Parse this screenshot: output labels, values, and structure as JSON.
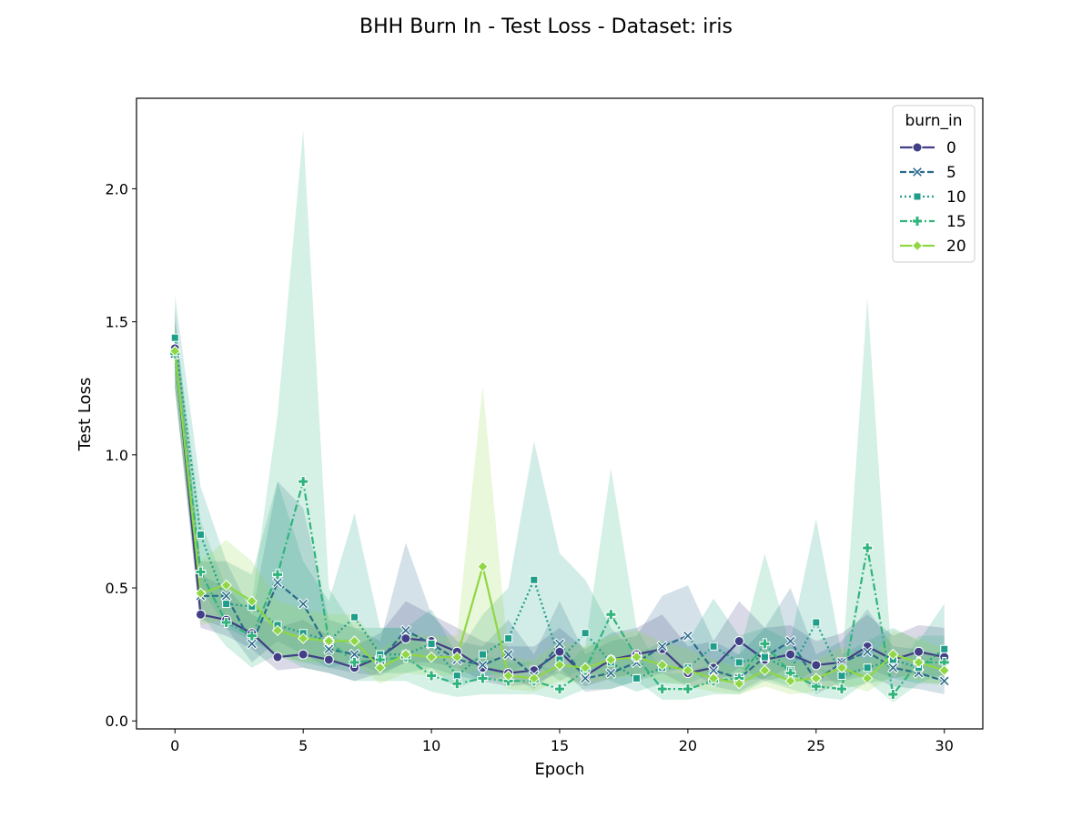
{
  "chart_data": {
    "type": "line",
    "title": "BHH Burn In - Test Loss - Dataset: iris",
    "xlabel": "Epoch",
    "ylabel": "Test Loss",
    "xlim": [
      -1.5,
      31.5
    ],
    "ylim": [
      -0.03,
      2.34
    ],
    "xticks": [
      0,
      5,
      10,
      15,
      20,
      25,
      30
    ],
    "xtick_labels": [
      "0",
      "5",
      "10",
      "15",
      "20",
      "25",
      "30"
    ],
    "yticks": [
      0.0,
      0.5,
      1.0,
      1.5,
      2.0
    ],
    "ytick_labels": [
      "0.0",
      "0.5",
      "1.0",
      "1.5",
      "2.0"
    ],
    "grid": false,
    "legend": {
      "title": "burn_in",
      "location": "top-right"
    },
    "x": [
      0,
      1,
      2,
      3,
      4,
      5,
      6,
      7,
      8,
      9,
      10,
      11,
      12,
      13,
      14,
      15,
      16,
      17,
      18,
      19,
      20,
      21,
      22,
      23,
      24,
      25,
      26,
      27,
      28,
      29,
      30
    ],
    "series": [
      {
        "name": "0",
        "color": "#413f85",
        "marker": "circle",
        "dash": "solid",
        "values": [
          1.4,
          0.4,
          0.38,
          0.33,
          0.24,
          0.25,
          0.23,
          0.2,
          0.24,
          0.31,
          0.3,
          0.26,
          0.2,
          0.18,
          0.19,
          0.26,
          0.17,
          0.23,
          0.25,
          0.27,
          0.18,
          0.2,
          0.3,
          0.23,
          0.25,
          0.21,
          0.22,
          0.28,
          0.23,
          0.26,
          0.24
        ],
        "ci_low": [
          1.25,
          0.35,
          0.32,
          0.27,
          0.19,
          0.2,
          0.18,
          0.15,
          0.18,
          0.22,
          0.22,
          0.2,
          0.15,
          0.13,
          0.14,
          0.18,
          0.13,
          0.16,
          0.18,
          0.18,
          0.13,
          0.14,
          0.2,
          0.15,
          0.17,
          0.15,
          0.15,
          0.2,
          0.16,
          0.18,
          0.16
        ],
        "ci_high": [
          1.55,
          0.55,
          0.5,
          0.4,
          0.35,
          0.38,
          0.32,
          0.28,
          0.33,
          0.45,
          0.4,
          0.35,
          0.3,
          0.28,
          0.28,
          0.35,
          0.27,
          0.33,
          0.35,
          0.4,
          0.28,
          0.3,
          0.45,
          0.35,
          0.36,
          0.3,
          0.33,
          0.4,
          0.32,
          0.36,
          0.35
        ]
      },
      {
        "name": "5",
        "color": "#2b6b8c",
        "marker": "x",
        "dash": "dashed",
        "values": [
          1.38,
          0.47,
          0.47,
          0.29,
          0.52,
          0.44,
          0.27,
          0.25,
          0.23,
          0.34,
          0.29,
          0.23,
          0.21,
          0.25,
          0.17,
          0.29,
          0.16,
          0.18,
          0.22,
          0.28,
          0.32,
          0.19,
          0.16,
          0.24,
          0.3,
          0.15,
          0.22,
          0.26,
          0.2,
          0.18,
          0.15
        ],
        "ci_low": [
          1.25,
          0.38,
          0.35,
          0.22,
          0.3,
          0.25,
          0.2,
          0.18,
          0.17,
          0.22,
          0.2,
          0.17,
          0.15,
          0.17,
          0.12,
          0.2,
          0.11,
          0.12,
          0.15,
          0.18,
          0.2,
          0.13,
          0.11,
          0.16,
          0.2,
          0.1,
          0.15,
          0.17,
          0.13,
          0.12,
          0.1
        ],
        "ci_high": [
          1.5,
          0.6,
          0.6,
          0.4,
          0.9,
          0.8,
          0.38,
          0.35,
          0.3,
          0.67,
          0.4,
          0.3,
          0.28,
          0.38,
          0.25,
          0.45,
          0.25,
          0.3,
          0.32,
          0.47,
          0.51,
          0.3,
          0.25,
          0.35,
          0.5,
          0.25,
          0.3,
          0.42,
          0.28,
          0.27,
          0.23
        ]
      },
      {
        "name": "10",
        "color": "#1f9e89",
        "marker": "square",
        "dash": "dotted",
        "values": [
          1.44,
          0.7,
          0.44,
          0.43,
          0.36,
          0.33,
          0.3,
          0.39,
          0.25,
          0.25,
          0.29,
          0.17,
          0.25,
          0.31,
          0.53,
          0.23,
          0.33,
          0.22,
          0.16,
          0.2,
          0.2,
          0.28,
          0.22,
          0.24,
          0.19,
          0.37,
          0.17,
          0.2,
          0.23,
          0.2,
          0.27
        ],
        "ci_low": [
          1.3,
          0.5,
          0.35,
          0.3,
          0.25,
          0.22,
          0.2,
          0.22,
          0.18,
          0.18,
          0.2,
          0.12,
          0.17,
          0.18,
          0.22,
          0.15,
          0.2,
          0.15,
          0.11,
          0.14,
          0.14,
          0.18,
          0.15,
          0.16,
          0.13,
          0.2,
          0.12,
          0.14,
          0.16,
          0.14,
          0.18
        ],
        "ci_high": [
          1.6,
          0.88,
          0.6,
          0.55,
          0.9,
          0.6,
          0.45,
          0.78,
          0.35,
          0.35,
          0.42,
          0.25,
          0.4,
          0.5,
          1.05,
          0.63,
          0.53,
          0.35,
          0.25,
          0.3,
          0.3,
          0.46,
          0.32,
          0.35,
          0.3,
          0.76,
          0.25,
          0.3,
          0.35,
          0.3,
          0.44
        ]
      },
      {
        "name": "15",
        "color": "#2fb47c",
        "marker": "plus",
        "dash": "dashdot",
        "values": [
          1.38,
          0.56,
          0.37,
          0.32,
          0.55,
          0.9,
          0.3,
          0.22,
          0.23,
          0.24,
          0.17,
          0.14,
          0.16,
          0.15,
          0.15,
          0.12,
          0.19,
          0.4,
          0.24,
          0.12,
          0.12,
          0.15,
          0.16,
          0.29,
          0.18,
          0.13,
          0.12,
          0.65,
          0.1,
          0.22,
          0.22
        ],
        "ci_low": [
          1.25,
          0.4,
          0.28,
          0.2,
          0.25,
          0.2,
          0.18,
          0.15,
          0.15,
          0.15,
          0.11,
          0.09,
          0.1,
          0.1,
          0.1,
          0.08,
          0.12,
          0.12,
          0.15,
          0.08,
          0.08,
          0.1,
          0.1,
          0.15,
          0.12,
          0.09,
          0.08,
          0.15,
          0.07,
          0.14,
          0.14
        ],
        "ci_high": [
          1.5,
          0.75,
          0.5,
          0.45,
          1.15,
          2.22,
          0.5,
          0.35,
          0.35,
          0.35,
          0.25,
          0.2,
          0.25,
          0.22,
          0.22,
          0.18,
          0.28,
          0.95,
          0.35,
          0.18,
          0.18,
          0.22,
          0.25,
          0.63,
          0.28,
          0.2,
          0.18,
          1.59,
          0.15,
          0.32,
          0.32
        ]
      },
      {
        "name": "20",
        "color": "#8fd744",
        "marker": "diamond",
        "dash": "solid",
        "values": [
          1.39,
          0.48,
          0.51,
          0.45,
          0.34,
          0.31,
          0.3,
          0.3,
          0.2,
          0.25,
          0.24,
          0.24,
          0.58,
          0.17,
          0.16,
          0.21,
          0.2,
          0.23,
          0.24,
          0.21,
          0.19,
          0.16,
          0.14,
          0.19,
          0.15,
          0.16,
          0.2,
          0.16,
          0.25,
          0.22,
          0.19
        ],
        "ci_low": [
          1.28,
          0.36,
          0.38,
          0.32,
          0.24,
          0.22,
          0.22,
          0.22,
          0.14,
          0.18,
          0.17,
          0.17,
          0.2,
          0.12,
          0.11,
          0.15,
          0.14,
          0.16,
          0.17,
          0.15,
          0.13,
          0.11,
          0.1,
          0.13,
          0.1,
          0.11,
          0.14,
          0.11,
          0.17,
          0.15,
          0.13
        ],
        "ci_high": [
          1.5,
          0.6,
          0.68,
          0.6,
          0.45,
          0.42,
          0.4,
          0.4,
          0.27,
          0.33,
          0.32,
          0.32,
          1.26,
          0.24,
          0.23,
          0.3,
          0.28,
          0.32,
          0.34,
          0.3,
          0.27,
          0.23,
          0.2,
          0.27,
          0.22,
          0.23,
          0.28,
          0.22,
          0.34,
          0.31,
          0.27
        ]
      }
    ]
  }
}
